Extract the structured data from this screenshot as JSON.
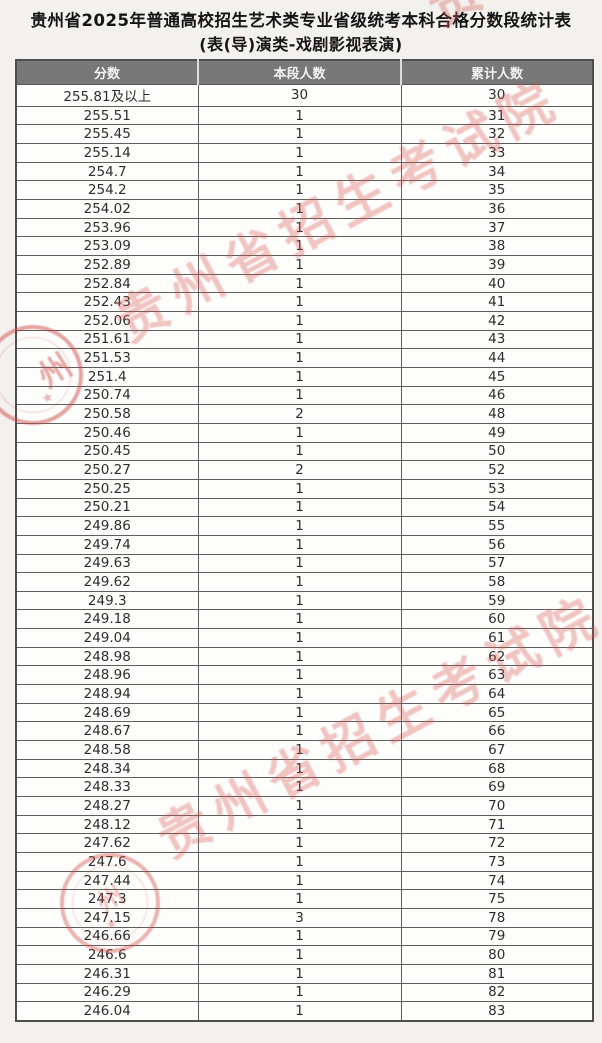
{
  "title": "贵州省2025年普通高校招生艺术类专业省级统考本科合格分数段统计表",
  "subtitle": "(表(导)演类-戏剧影视表演)",
  "table": {
    "headers": [
      "分数",
      "本段人数",
      "累计人数"
    ],
    "column_keys": [
      "score",
      "segment_count",
      "cumulative_count"
    ],
    "rows": [
      [
        "255.81及以上",
        "30",
        "30"
      ],
      [
        "255.51",
        "1",
        "31"
      ],
      [
        "255.45",
        "1",
        "32"
      ],
      [
        "255.14",
        "1",
        "33"
      ],
      [
        "254.7",
        "1",
        "34"
      ],
      [
        "254.2",
        "1",
        "35"
      ],
      [
        "254.02",
        "1",
        "36"
      ],
      [
        "253.96",
        "1",
        "37"
      ],
      [
        "253.09",
        "1",
        "38"
      ],
      [
        "252.89",
        "1",
        "39"
      ],
      [
        "252.84",
        "1",
        "40"
      ],
      [
        "252.43",
        "1",
        "41"
      ],
      [
        "252.06",
        "1",
        "42"
      ],
      [
        "251.61",
        "1",
        "43"
      ],
      [
        "251.53",
        "1",
        "44"
      ],
      [
        "251.4",
        "1",
        "45"
      ],
      [
        "250.74",
        "1",
        "46"
      ],
      [
        "250.58",
        "2",
        "48"
      ],
      [
        "250.46",
        "1",
        "49"
      ],
      [
        "250.45",
        "1",
        "50"
      ],
      [
        "250.27",
        "2",
        "52"
      ],
      [
        "250.25",
        "1",
        "53"
      ],
      [
        "250.21",
        "1",
        "54"
      ],
      [
        "249.86",
        "1",
        "55"
      ],
      [
        "249.74",
        "1",
        "56"
      ],
      [
        "249.63",
        "1",
        "57"
      ],
      [
        "249.62",
        "1",
        "58"
      ],
      [
        "249.3",
        "1",
        "59"
      ],
      [
        "249.18",
        "1",
        "60"
      ],
      [
        "249.04",
        "1",
        "61"
      ],
      [
        "248.98",
        "1",
        "62"
      ],
      [
        "248.96",
        "1",
        "63"
      ],
      [
        "248.94",
        "1",
        "64"
      ],
      [
        "248.69",
        "1",
        "65"
      ],
      [
        "248.67",
        "1",
        "66"
      ],
      [
        "248.58",
        "1",
        "67"
      ],
      [
        "248.34",
        "1",
        "68"
      ],
      [
        "248.33",
        "1",
        "69"
      ],
      [
        "248.27",
        "1",
        "70"
      ],
      [
        "248.12",
        "1",
        "71"
      ],
      [
        "247.62",
        "1",
        "72"
      ],
      [
        "247.6",
        "1",
        "73"
      ],
      [
        "247.44",
        "1",
        "74"
      ],
      [
        "247.3",
        "1",
        "75"
      ],
      [
        "247.15",
        "3",
        "78"
      ],
      [
        "246.66",
        "1",
        "79"
      ],
      [
        "246.6",
        "1",
        "80"
      ],
      [
        "246.31",
        "1",
        "81"
      ],
      [
        "246.29",
        "1",
        "82"
      ],
      [
        "246.04",
        "1",
        "83"
      ]
    ]
  },
  "watermark": {
    "text": "贵州省招生考试院",
    "seal_char": "州",
    "seal_star": "★",
    "color": "#d65650"
  }
}
